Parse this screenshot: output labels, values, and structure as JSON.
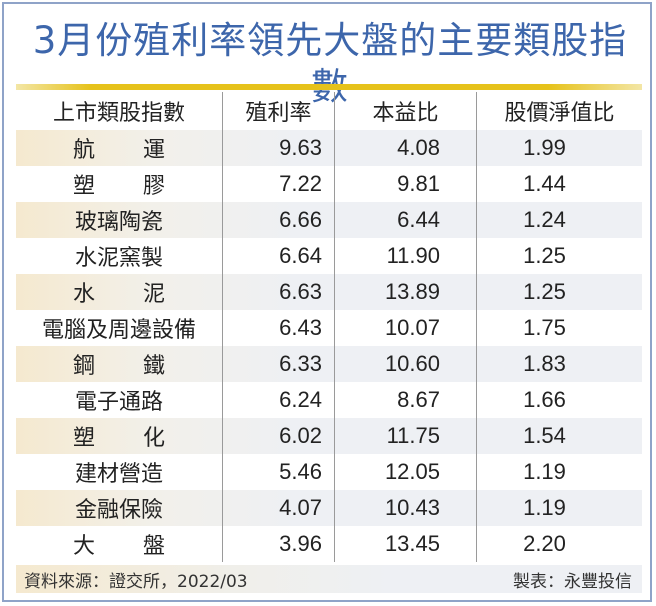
{
  "title": "3月份殖利率領先大盤的主要類股指數",
  "colors": {
    "title": "#3d66ab",
    "frame_border": "#8fa3c8",
    "gold_line": "#e6c21a",
    "row_shade_left": "#f5e9cf",
    "row_shade_right": "#eef0f4"
  },
  "table": {
    "headers": [
      "上市類股指數",
      "殖利率",
      "本益比",
      "股價淨值比"
    ],
    "rows": [
      {
        "name": "航運",
        "spread": true,
        "yield": "9.63",
        "pe": "4.08",
        "pb": "1.99"
      },
      {
        "name": "塑膠",
        "spread": true,
        "yield": "7.22",
        "pe": "9.81",
        "pb": "1.44"
      },
      {
        "name": "玻璃陶瓷",
        "spread": false,
        "yield": "6.66",
        "pe": "6.44",
        "pb": "1.24"
      },
      {
        "name": "水泥窯製",
        "spread": false,
        "yield": "6.64",
        "pe": "11.90",
        "pb": "1.25"
      },
      {
        "name": "水泥",
        "spread": true,
        "yield": "6.63",
        "pe": "13.89",
        "pb": "1.25"
      },
      {
        "name": "電腦及周邊設備",
        "spread": false,
        "yield": "6.43",
        "pe": "10.07",
        "pb": "1.75"
      },
      {
        "name": "鋼鐵",
        "spread": true,
        "yield": "6.33",
        "pe": "10.60",
        "pb": "1.83"
      },
      {
        "name": "電子通路",
        "spread": false,
        "yield": "6.24",
        "pe": "8.67",
        "pb": "1.66"
      },
      {
        "name": "塑化",
        "spread": true,
        "yield": "6.02",
        "pe": "11.75",
        "pb": "1.54"
      },
      {
        "name": "建材營造",
        "spread": false,
        "yield": "5.46",
        "pe": "12.05",
        "pb": "1.19"
      },
      {
        "name": "金融保險",
        "spread": false,
        "yield": "4.07",
        "pe": "10.43",
        "pb": "1.19"
      },
      {
        "name": "大盤",
        "spread": true,
        "yield": "3.96",
        "pe": "13.45",
        "pb": "2.20"
      }
    ]
  },
  "footer": {
    "source": "資料來源：證交所，2022/03",
    "credit": "製表：永豐投信"
  },
  "chart_data": {
    "type": "table",
    "title": "3月份殖利率領先大盤的主要類股指數",
    "columns": [
      "上市類股指數",
      "殖利率",
      "本益比",
      "股價淨值比"
    ],
    "rows": [
      [
        "航運",
        9.63,
        4.08,
        1.99
      ],
      [
        "塑膠",
        7.22,
        9.81,
        1.44
      ],
      [
        "玻璃陶瓷",
        6.66,
        6.44,
        1.24
      ],
      [
        "水泥窯製",
        6.64,
        11.9,
        1.25
      ],
      [
        "水泥",
        6.63,
        13.89,
        1.25
      ],
      [
        "電腦及周邊設備",
        6.43,
        10.07,
        1.75
      ],
      [
        "鋼鐵",
        6.33,
        10.6,
        1.83
      ],
      [
        "電子通路",
        6.24,
        8.67,
        1.66
      ],
      [
        "塑化",
        6.02,
        11.75,
        1.54
      ],
      [
        "建材營造",
        5.46,
        12.05,
        1.19
      ],
      [
        "金融保險",
        4.07,
        10.43,
        1.19
      ],
      [
        "大盤",
        3.96,
        13.45,
        2.2
      ]
    ],
    "source": "資料來源：證交所，2022/03",
    "credit": "製表：永豐投信"
  }
}
